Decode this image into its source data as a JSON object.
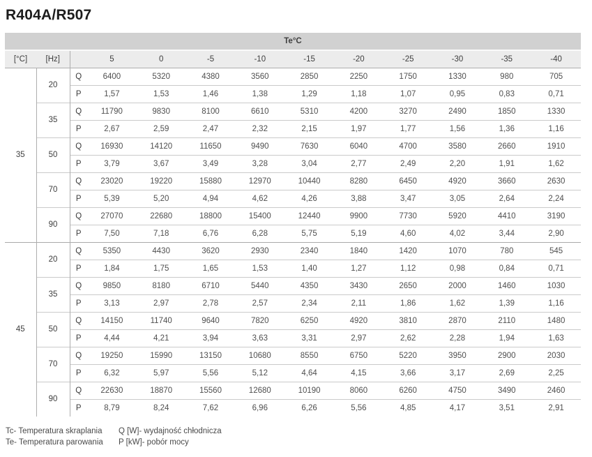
{
  "title": "R404A/R507",
  "table": {
    "top_header": "Te°C",
    "col_headers": [
      "[°C]",
      "[Hz]",
      "5",
      "0",
      "-5",
      "-10",
      "-15",
      "-20",
      "-25",
      "-30",
      "-35",
      "-40"
    ],
    "row_labels": {
      "q": "Q",
      "p": "P"
    },
    "groups": [
      {
        "tc": "35",
        "rows": [
          {
            "hz": "20",
            "q": [
              "6400",
              "5320",
              "4380",
              "3560",
              "2850",
              "2250",
              "1750",
              "1330",
              "980",
              "705"
            ],
            "p": [
              "1,57",
              "1,53",
              "1,46",
              "1,38",
              "1,29",
              "1,18",
              "1,07",
              "0,95",
              "0,83",
              "0,71"
            ]
          },
          {
            "hz": "35",
            "q": [
              "11790",
              "9830",
              "8100",
              "6610",
              "5310",
              "4200",
              "3270",
              "2490",
              "1850",
              "1330"
            ],
            "p": [
              "2,67",
              "2,59",
              "2,47",
              "2,32",
              "2,15",
              "1,97",
              "1,77",
              "1,56",
              "1,36",
              "1,16"
            ]
          },
          {
            "hz": "50",
            "q": [
              "16930",
              "14120",
              "11650",
              "9490",
              "7630",
              "6040",
              "4700",
              "3580",
              "2660",
              "1910"
            ],
            "p": [
              "3,79",
              "3,67",
              "3,49",
              "3,28",
              "3,04",
              "2,77",
              "2,49",
              "2,20",
              "1,91",
              "1,62"
            ]
          },
          {
            "hz": "70",
            "q": [
              "23020",
              "19220",
              "15880",
              "12970",
              "10440",
              "8280",
              "6450",
              "4920",
              "3660",
              "2630"
            ],
            "p": [
              "5,39",
              "5,20",
              "4,94",
              "4,62",
              "4,26",
              "3,88",
              "3,47",
              "3,05",
              "2,64",
              "2,24"
            ]
          },
          {
            "hz": "90",
            "q": [
              "27070",
              "22680",
              "18800",
              "15400",
              "12440",
              "9900",
              "7730",
              "5920",
              "4410",
              "3190"
            ],
            "p": [
              "7,50",
              "7,18",
              "6,76",
              "6,28",
              "5,75",
              "5,19",
              "4,60",
              "4,02",
              "3,44",
              "2,90"
            ]
          }
        ]
      },
      {
        "tc": "45",
        "rows": [
          {
            "hz": "20",
            "q": [
              "5350",
              "4430",
              "3620",
              "2930",
              "2340",
              "1840",
              "1420",
              "1070",
              "780",
              "545"
            ],
            "p": [
              "1,84",
              "1,75",
              "1,65",
              "1,53",
              "1,40",
              "1,27",
              "1,12",
              "0,98",
              "0,84",
              "0,71"
            ]
          },
          {
            "hz": "35",
            "q": [
              "9850",
              "8180",
              "6710",
              "5440",
              "4350",
              "3430",
              "2650",
              "2000",
              "1460",
              "1030"
            ],
            "p": [
              "3,13",
              "2,97",
              "2,78",
              "2,57",
              "2,34",
              "2,11",
              "1,86",
              "1,62",
              "1,39",
              "1,16"
            ]
          },
          {
            "hz": "50",
            "q": [
              "14150",
              "11740",
              "9640",
              "7820",
              "6250",
              "4920",
              "3810",
              "2870",
              "2110",
              "1480"
            ],
            "p": [
              "4,44",
              "4,21",
              "3,94",
              "3,63",
              "3,31",
              "2,97",
              "2,62",
              "2,28",
              "1,94",
              "1,63"
            ]
          },
          {
            "hz": "70",
            "q": [
              "19250",
              "15990",
              "13150",
              "10680",
              "8550",
              "6750",
              "5220",
              "3950",
              "2900",
              "2030"
            ],
            "p": [
              "6,32",
              "5,97",
              "5,56",
              "5,12",
              "4,64",
              "4,15",
              "3,66",
              "3,17",
              "2,69",
              "2,25"
            ]
          },
          {
            "hz": "90",
            "q": [
              "22630",
              "18870",
              "15560",
              "12680",
              "10190",
              "8060",
              "6260",
              "4750",
              "3490",
              "2460"
            ],
            "p": [
              "8,79",
              "8,24",
              "7,62",
              "6,96",
              "6,26",
              "5,56",
              "4,85",
              "4,17",
              "3,51",
              "2,91"
            ]
          }
        ]
      }
    ]
  },
  "footnotes": {
    "tc": "Tc- Temperatura skraplania",
    "te": "Te- Temperatura parowania",
    "q": "Q [W]- wydajność chłodnicza",
    "p": "P [kW]- pobór mocy"
  },
  "colors": {
    "header_dark": "#d1d1d1",
    "header_light": "#ececec",
    "border_strong": "#aeaeae",
    "border_light": "#cacaca",
    "text": "#4a4a4a"
  }
}
